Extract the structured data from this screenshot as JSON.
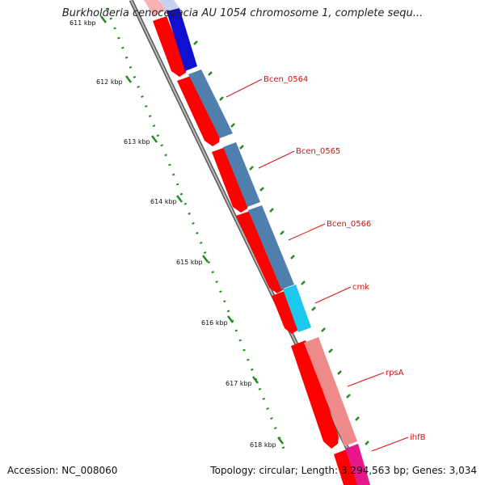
{
  "title": "Burkholderia cenocepacia AU 1054 chromosome 1, complete sequ...",
  "footer": {
    "accession": "Accession: NC_008060",
    "topology": "Topology: circular; Length: 3,294,563 bp; Genes: 3,034"
  },
  "scale_labels": [
    "611 kbp",
    "612 kbp",
    "613 kbp",
    "614 kbp",
    "615 kbp",
    "616 kbp",
    "617 kbp",
    "618 kbp"
  ],
  "gene_labels": [
    "Bcen_0564",
    "Bcen_0565",
    "Bcen_0566",
    "cmk",
    "rpsA",
    "ihfB"
  ],
  "colors": {
    "backbone": "#888888",
    "cds_red": "#ff0000",
    "steel_blue": "#4f7fad",
    "dark_blue": "#1010d0",
    "cyan": "#1cc8ee",
    "salmon": "#ee8a8a",
    "magenta": "#e8188a",
    "ticks": "#228b22",
    "label_line": "#dd1111"
  }
}
